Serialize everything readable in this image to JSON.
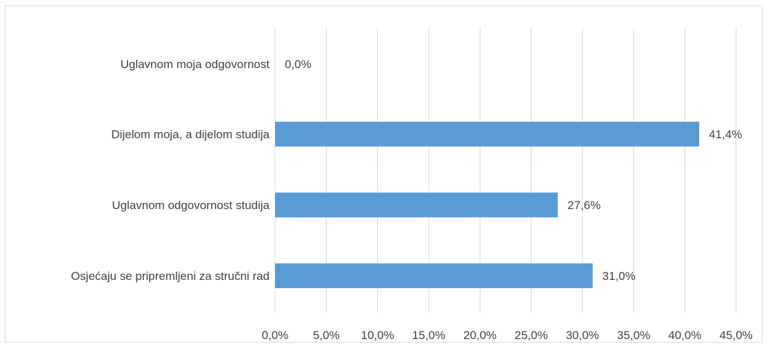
{
  "chart_data": {
    "type": "bar",
    "orientation": "horizontal",
    "categories": [
      "Uglavnom moja odgovornost",
      "Dijelom moja, a dijelom studija",
      "Uglavnom odgovornost studija",
      "Osjećaju se pripremljeni za stručni rad"
    ],
    "values": [
      0.0,
      41.4,
      27.6,
      31.0
    ],
    "data_labels": [
      "0,0%",
      "41,4%",
      "27,6%",
      "31,0%"
    ],
    "x_ticks": [
      "0,0%",
      "5,0%",
      "10,0%",
      "15,0%",
      "20,0%",
      "25,0%",
      "30,0%",
      "35,0%",
      "40,0%",
      "45,0%"
    ],
    "xlim": [
      0,
      45
    ],
    "grid": "vertical",
    "legend": "none",
    "bar_color": "#5b9bd5",
    "grid_color": "#d9d9d9",
    "text_color": "#404040"
  }
}
